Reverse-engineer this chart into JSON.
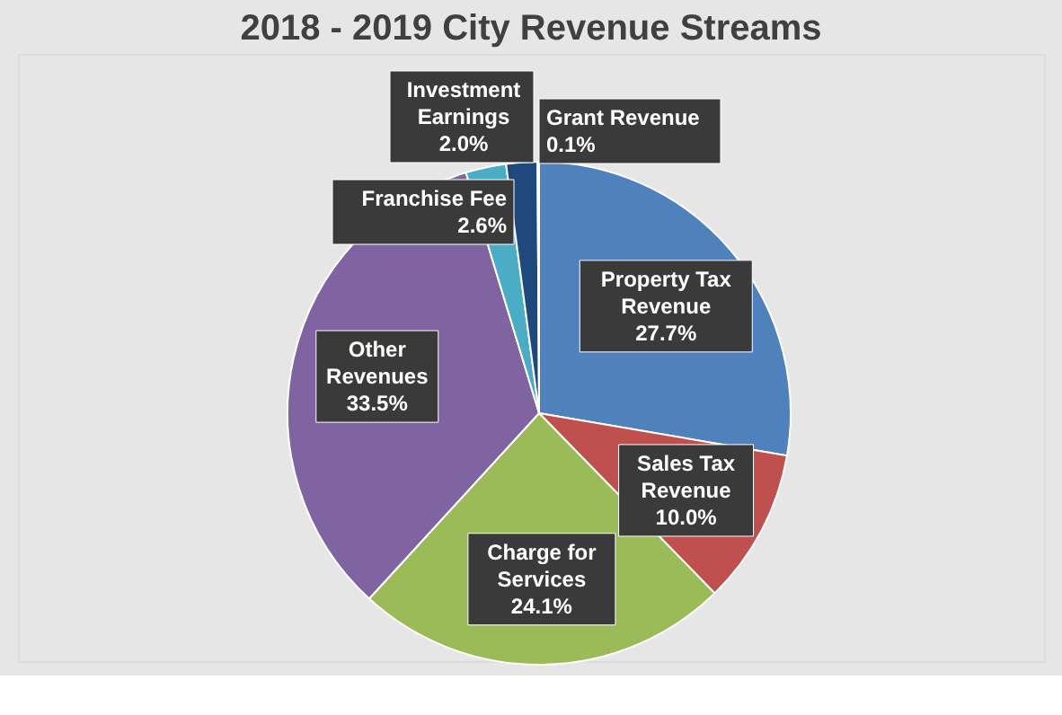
{
  "chart_data": {
    "type": "pie",
    "title": "2018 - 2019 City Revenue Streams",
    "categories": [
      "Property Tax Revenue",
      "Sales Tax Revenue",
      "Charge for Services",
      "Other Revenues",
      "Franchise Fee",
      "Investment Earnings",
      "Grant Revenue"
    ],
    "values": [
      27.7,
      10.0,
      24.1,
      33.5,
      2.6,
      2.0,
      0.1
    ],
    "colors": [
      "#4f81bd",
      "#c0504d",
      "#9bbb59",
      "#8064a2",
      "#4bacc6",
      "#1f497d",
      "#f79646"
    ],
    "value_labels": [
      "27.7%",
      "10.0%",
      "24.1%",
      "33.5%",
      "2.6%",
      "2.0%",
      "0.1%"
    ],
    "legend": false
  }
}
